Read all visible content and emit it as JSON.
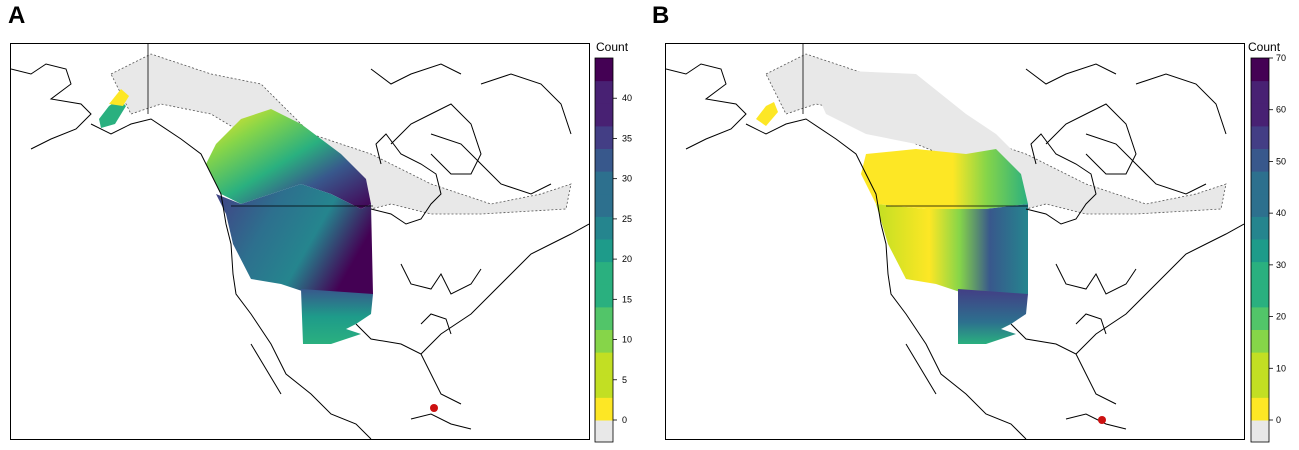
{
  "panels": [
    {
      "id": "A",
      "letter": "A",
      "legend": {
        "title": "Count",
        "max": 45,
        "ticks": [
          0,
          5,
          10,
          15,
          20,
          25,
          30,
          35,
          40
        ],
        "tick_labels": [
          "0",
          "5",
          "10",
          "15",
          "20",
          "25",
          "30",
          "35",
          "40"
        ],
        "bands": 16
      }
    },
    {
      "id": "B",
      "letter": "B",
      "legend": {
        "title": "Count",
        "max": 70,
        "ticks": [
          0,
          10,
          20,
          30,
          40,
          50,
          60,
          70
        ],
        "tick_labels": [
          "0",
          "10",
          "20",
          "30",
          "40",
          "50",
          "60",
          "70"
        ],
        "bands": 16
      }
    }
  ],
  "colors": {
    "no_data": "#e8e8e8",
    "viridis": [
      "#fde725",
      "#c2df23",
      "#86d549",
      "#52c569",
      "#2ab07f",
      "#1e9b8a",
      "#25858e",
      "#2d708e",
      "#38588c",
      "#433e85",
      "#482173",
      "#440154"
    ],
    "coastline": "#000000",
    "marker": "#cc1111"
  }
}
